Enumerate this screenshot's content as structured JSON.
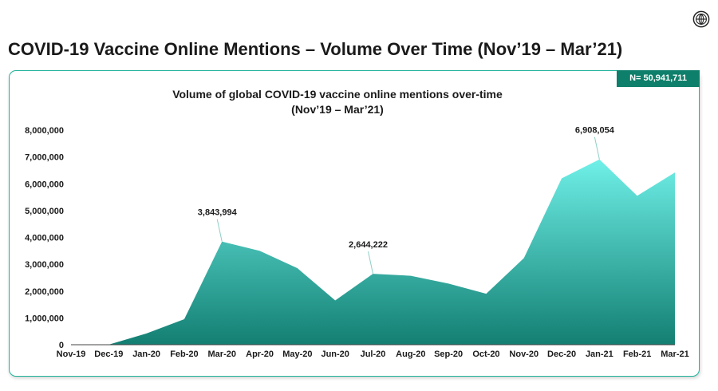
{
  "page_title": "COVID-19 Vaccine Online Mentions – Volume Over Time (Nov’19 – Mar’21)",
  "badge": "N= 50,941,711",
  "icons": {
    "top_right": "globe-icon"
  },
  "colors": {
    "area_top": "#6ff0e8",
    "area_bottom": "#137f72",
    "card_border": "#1fb39a",
    "badge_bg": "#0e7f6a"
  },
  "chart_data": {
    "type": "area",
    "title": "Volume of global COVID-19 vaccine online mentions over-time",
    "subtitle": "(Nov’19 – Mar’21)",
    "categories": [
      "Nov-19",
      "Dec-19",
      "Jan-20",
      "Feb-20",
      "Mar-20",
      "Apr-20",
      "May-20",
      "Jun-20",
      "Jul-20",
      "Aug-20",
      "Sep-20",
      "Oct-20",
      "Nov-20",
      "Dec-20",
      "Jan-21",
      "Feb-21",
      "Mar-21"
    ],
    "values": [
      0,
      5000,
      420000,
      950000,
      3843994,
      3500000,
      2850000,
      1650000,
      2644222,
      2570000,
      2280000,
      1900000,
      3230000,
      6200000,
      6908054,
      5550000,
      6420000
    ],
    "ylim": [
      0,
      8000000
    ],
    "yticks": [
      0,
      1000000,
      2000000,
      3000000,
      4000000,
      5000000,
      6000000,
      7000000,
      8000000
    ],
    "ytick_labels": [
      "0",
      "1,000,000",
      "2,000,000",
      "3,000,000",
      "4,000,000",
      "5,000,000",
      "6,000,000",
      "7,000,000",
      "8,000,000"
    ],
    "annotations": [
      {
        "category": "Mar-20",
        "label": "3,843,994"
      },
      {
        "category": "Jul-20",
        "label": "2,644,222"
      },
      {
        "category": "Jan-21",
        "label": "6,908,054"
      }
    ],
    "grid": false,
    "legend": "none"
  }
}
